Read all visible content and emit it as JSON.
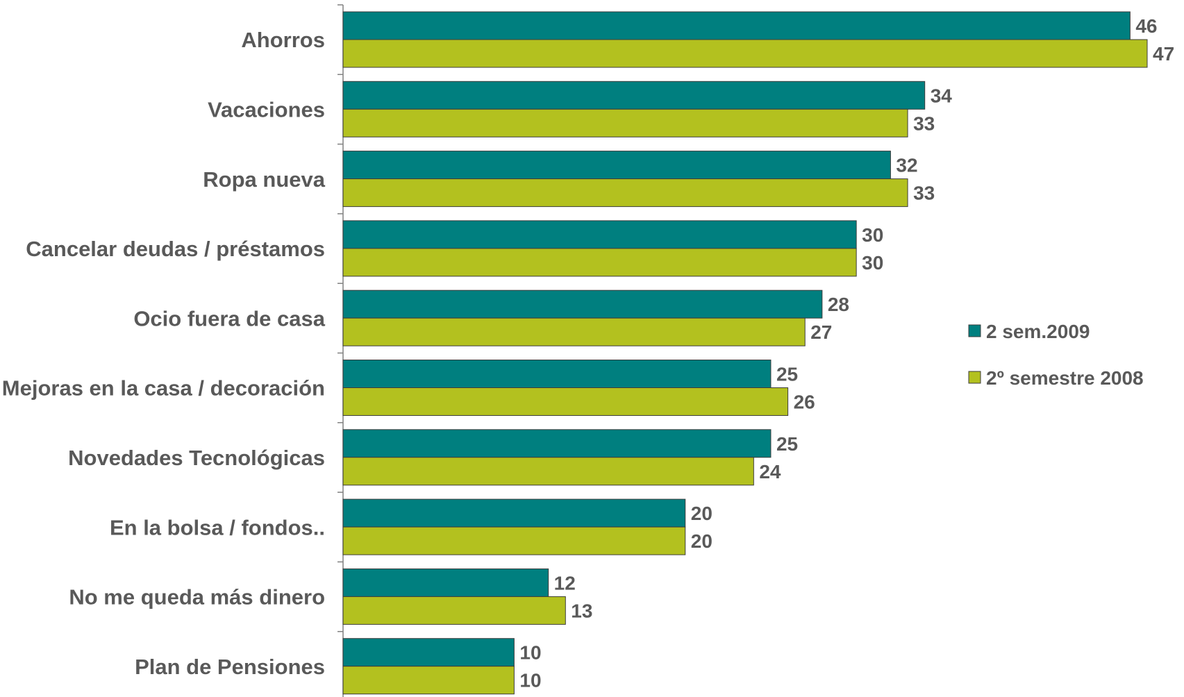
{
  "chart_data": {
    "type": "bar",
    "orientation": "horizontal",
    "title": "",
    "xlabel": "",
    "ylabel": "",
    "xlim": [
      0,
      47
    ],
    "grid": false,
    "legend_position": "right",
    "categories": [
      "Ahorros",
      "Vacaciones",
      "Ropa nueva",
      "Cancelar deudas / préstamos",
      "Ocio fuera de casa",
      "Mejoras en la casa / decoración",
      "Novedades Tecnológicas",
      "En la bolsa / fondos..",
      "No me queda más dinero",
      "Plan de Pensiones"
    ],
    "series": [
      {
        "name": "2 sem.2009",
        "color": "#007F7F",
        "values": [
          46,
          34,
          32,
          30,
          28,
          25,
          25,
          20,
          12,
          10
        ]
      },
      {
        "name": "2º semestre 2008",
        "color": "#B3C11F",
        "values": [
          47,
          33,
          33,
          30,
          27,
          26,
          24,
          20,
          13,
          10
        ]
      }
    ]
  }
}
